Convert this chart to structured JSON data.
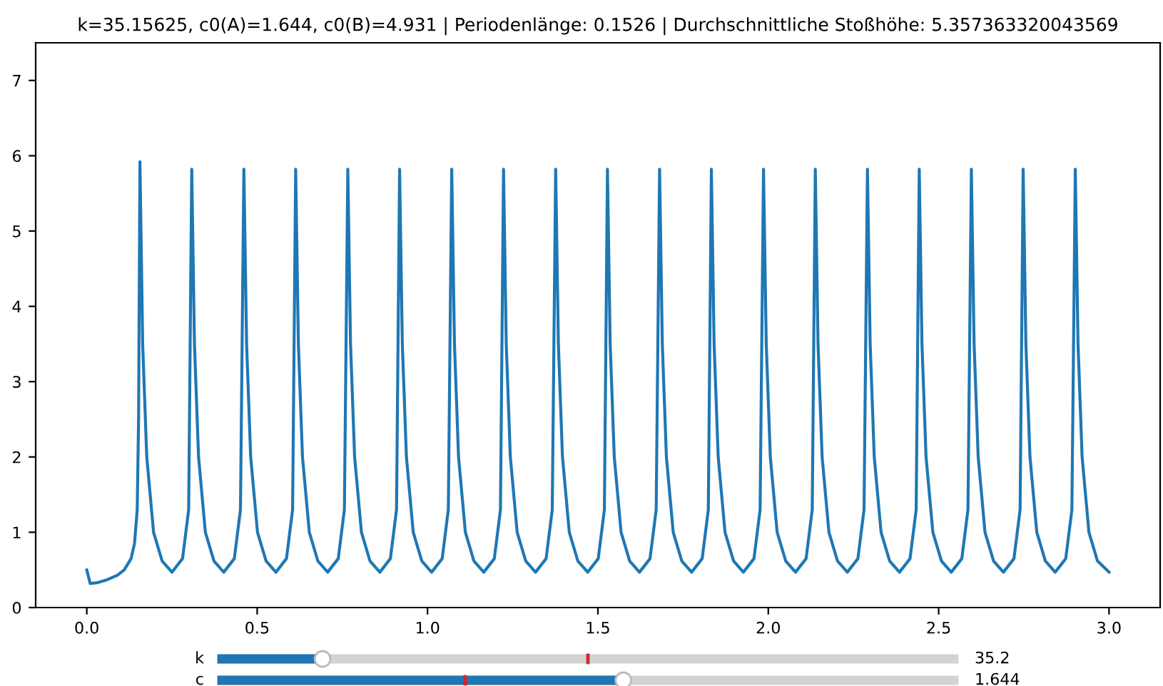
{
  "chart_data": {
    "type": "line",
    "title": "k=35.15625, c0(A)=1.644, c0(B)=4.931 | Periodenlänge: 0.1526 | Durchschnittliche Stoßhöhe: 5.357363320043569",
    "xlim": [
      -0.15,
      3.15
    ],
    "xticks": [
      {
        "value": 0,
        "label": "0.0"
      },
      {
        "value": 0.5,
        "label": "0.5"
      },
      {
        "value": 1,
        "label": "1.0"
      },
      {
        "value": 1.5,
        "label": "1.5"
      },
      {
        "value": 2,
        "label": "2.0"
      },
      {
        "value": 2.5,
        "label": "2.5"
      },
      {
        "value": 3,
        "label": "3.0"
      }
    ],
    "ylim": [
      0,
      7.5
    ],
    "yticks": [
      0,
      1,
      2,
      3,
      4,
      5,
      6,
      7
    ],
    "grid": false,
    "legend": false,
    "annotations": [
      "k",
      "35.2",
      "c",
      "1.644"
    ],
    "series": [
      {
        "color": "#1f77b4",
        "x": [
          0,
          0.01,
          0.03,
          0.06,
          0.09,
          0.11,
          0.13,
          0.14,
          0.148,
          0.152,
          0.156,
          0.164,
          0.176,
          0.196,
          0.221,
          0.25,
          0.281,
          0.299,
          0.308,
          0.316,
          0.328,
          0.348,
          0.373,
          0.402,
          0.433,
          0.451,
          0.461,
          0.469,
          0.481,
          0.501,
          0.526,
          0.555,
          0.586,
          0.604,
          0.613,
          0.621,
          0.633,
          0.653,
          0.678,
          0.707,
          0.738,
          0.756,
          0.766,
          0.774,
          0.786,
          0.806,
          0.831,
          0.86,
          0.891,
          0.909,
          0.918,
          0.926,
          0.938,
          0.958,
          0.983,
          1.012,
          1.043,
          1.061,
          1.071,
          1.079,
          1.091,
          1.111,
          1.136,
          1.165,
          1.196,
          1.214,
          1.223,
          1.231,
          1.243,
          1.263,
          1.288,
          1.317,
          1.348,
          1.366,
          1.376,
          1.384,
          1.396,
          1.416,
          1.441,
          1.47,
          1.501,
          1.519,
          1.528,
          1.536,
          1.548,
          1.568,
          1.593,
          1.622,
          1.653,
          1.671,
          1.681,
          1.689,
          1.701,
          1.721,
          1.746,
          1.775,
          1.806,
          1.824,
          1.833,
          1.841,
          1.853,
          1.873,
          1.898,
          1.927,
          1.958,
          1.976,
          1.986,
          1.994,
          2.006,
          2.026,
          2.051,
          2.08,
          2.111,
          2.129,
          2.138,
          2.146,
          2.158,
          2.178,
          2.203,
          2.232,
          2.263,
          2.281,
          2.291,
          2.299,
          2.311,
          2.331,
          2.356,
          2.385,
          2.416,
          2.434,
          2.443,
          2.451,
          2.463,
          2.483,
          2.508,
          2.537,
          2.568,
          2.586,
          2.596,
          2.604,
          2.616,
          2.636,
          2.661,
          2.69,
          2.721,
          2.739,
          2.748,
          2.756,
          2.768,
          2.788,
          2.813,
          2.842,
          2.873,
          2.891,
          2.901,
          2.909,
          2.921,
          2.941,
          2.966,
          3.0
        ],
        "values": [
          0.5,
          0.32,
          0.33,
          0.37,
          0.43,
          0.5,
          0.65,
          0.85,
          1.3,
          2.5,
          5.92,
          3.5,
          2.0,
          1.0,
          0.62,
          0.47,
          0.65,
          1.3,
          5.82,
          3.5,
          2.0,
          1.0,
          0.62,
          0.47,
          0.65,
          1.3,
          5.82,
          3.5,
          2.0,
          1.0,
          0.62,
          0.47,
          0.65,
          1.3,
          5.82,
          3.5,
          2.0,
          1.0,
          0.62,
          0.47,
          0.65,
          1.3,
          5.82,
          3.5,
          2.0,
          1.0,
          0.62,
          0.47,
          0.65,
          1.3,
          5.82,
          3.5,
          2.0,
          1.0,
          0.62,
          0.47,
          0.65,
          1.3,
          5.82,
          3.5,
          2.0,
          1.0,
          0.62,
          0.47,
          0.65,
          1.3,
          5.82,
          3.5,
          2.0,
          1.0,
          0.62,
          0.47,
          0.65,
          1.3,
          5.82,
          3.5,
          2.0,
          1.0,
          0.62,
          0.47,
          0.65,
          1.3,
          5.82,
          3.5,
          2.0,
          1.0,
          0.62,
          0.47,
          0.65,
          1.3,
          5.82,
          3.5,
          2.0,
          1.0,
          0.62,
          0.47,
          0.65,
          1.3,
          5.82,
          3.5,
          2.0,
          1.0,
          0.62,
          0.47,
          0.65,
          1.3,
          5.82,
          3.5,
          2.0,
          1.0,
          0.62,
          0.47,
          0.65,
          1.3,
          5.82,
          3.5,
          2.0,
          1.0,
          0.62,
          0.47,
          0.65,
          1.3,
          5.82,
          3.5,
          2.0,
          1.0,
          0.62,
          0.47,
          0.65,
          1.3,
          5.82,
          3.5,
          2.0,
          1.0,
          0.62,
          0.47,
          0.65,
          1.3,
          5.82,
          3.5,
          2.0,
          1.0,
          0.62,
          0.47,
          0.65,
          1.3,
          5.82,
          3.5,
          2.0,
          1.0,
          0.62,
          0.47,
          0.65,
          1.3,
          5.82,
          3.5,
          2.0,
          1.0,
          0.62,
          0.47
        ]
      }
    ]
  }
}
